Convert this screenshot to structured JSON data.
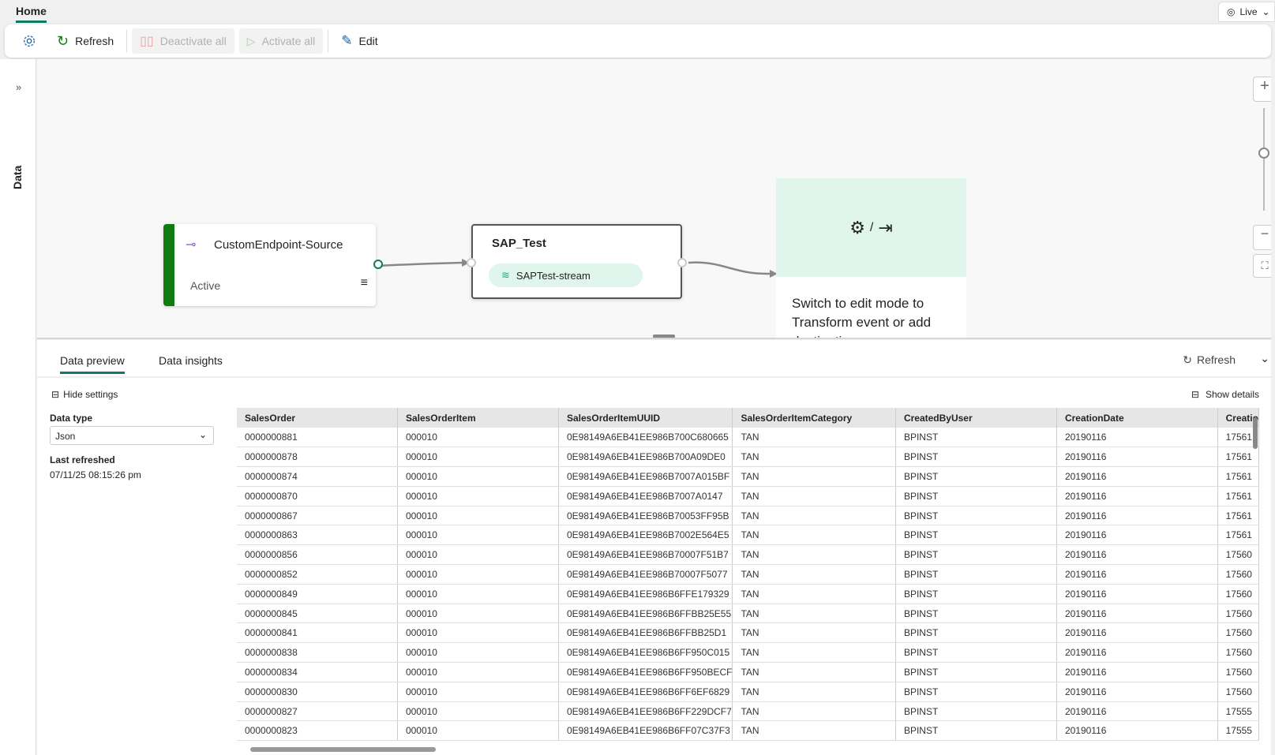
{
  "top": {
    "home_tab": "Home",
    "live_label": "Live"
  },
  "toolbar": {
    "refresh": "Refresh",
    "deactivate_all": "Deactivate all",
    "activate_all": "Activate all",
    "edit": "Edit"
  },
  "rail": {
    "label": "Data"
  },
  "canvas": {
    "source": {
      "name": "CustomEndpoint-Source",
      "status": "Active"
    },
    "stream": {
      "name": "SAP_Test",
      "chip": "SAPTest-stream"
    },
    "destination": {
      "hint": "Switch to edit mode to Transform event or add destination"
    },
    "colors": {
      "active": "#107c10",
      "accent": "#117865",
      "dest_bg": "#e0f5ec"
    }
  },
  "preview": {
    "tabs": [
      "Data preview",
      "Data insights"
    ],
    "refresh": "Refresh",
    "hide_settings": "Hide settings",
    "show_details": "Show details",
    "data_type_label": "Data type",
    "data_type_value": "Json",
    "last_refreshed_label": "Last refreshed",
    "last_refreshed_value": "07/11/25 08:15:26 pm",
    "columns": [
      "SalesOrder",
      "SalesOrderItem",
      "SalesOrderItemUUID",
      "SalesOrderItemCategory",
      "CreatedByUser",
      "CreationDate",
      "Creatio"
    ],
    "rows": [
      [
        "0000000881",
        "000010",
        "0E98149A6EB41EE986B700C680665",
        "TAN",
        "BPINST",
        "20190116",
        "17561"
      ],
      [
        "0000000878",
        "000010",
        "0E98149A6EB41EE986B700A09DE0",
        "TAN",
        "BPINST",
        "20190116",
        "17561"
      ],
      [
        "0000000874",
        "000010",
        "0E98149A6EB41EE986B7007A015BF",
        "TAN",
        "BPINST",
        "20190116",
        "17561"
      ],
      [
        "0000000870",
        "000010",
        "0E98149A6EB41EE986B7007A0147",
        "TAN",
        "BPINST",
        "20190116",
        "17561"
      ],
      [
        "0000000867",
        "000010",
        "0E98149A6EB41EE986B70053FF95B",
        "TAN",
        "BPINST",
        "20190116",
        "17561"
      ],
      [
        "0000000863",
        "000010",
        "0E98149A6EB41EE986B7002E564E5",
        "TAN",
        "BPINST",
        "20190116",
        "17561"
      ],
      [
        "0000000856",
        "000010",
        "0E98149A6EB41EE986B70007F51B7",
        "TAN",
        "BPINST",
        "20190116",
        "17560"
      ],
      [
        "0000000852",
        "000010",
        "0E98149A6EB41EE986B70007F5077",
        "TAN",
        "BPINST",
        "20190116",
        "17560"
      ],
      [
        "0000000849",
        "000010",
        "0E98149A6EB41EE986B6FFE179329",
        "TAN",
        "BPINST",
        "20190116",
        "17560"
      ],
      [
        "0000000845",
        "000010",
        "0E98149A6EB41EE986B6FFBB25E55",
        "TAN",
        "BPINST",
        "20190116",
        "17560"
      ],
      [
        "0000000841",
        "000010",
        "0E98149A6EB41EE986B6FFBB25D1",
        "TAN",
        "BPINST",
        "20190116",
        "17560"
      ],
      [
        "0000000838",
        "000010",
        "0E98149A6EB41EE986B6FF950C015",
        "TAN",
        "BPINST",
        "20190116",
        "17560"
      ],
      [
        "0000000834",
        "000010",
        "0E98149A6EB41EE986B6FF950BECF",
        "TAN",
        "BPINST",
        "20190116",
        "17560"
      ],
      [
        "0000000830",
        "000010",
        "0E98149A6EB41EE986B6FF6EF6829",
        "TAN",
        "BPINST",
        "20190116",
        "17560"
      ],
      [
        "0000000827",
        "000010",
        "0E98149A6EB41EE986B6FF229DCF7",
        "TAN",
        "BPINST",
        "20190116",
        "17555"
      ],
      [
        "0000000823",
        "000010",
        "0E98149A6EB41EE986B6FF07C37F3",
        "TAN",
        "BPINST",
        "20190116",
        "17555"
      ]
    ]
  }
}
